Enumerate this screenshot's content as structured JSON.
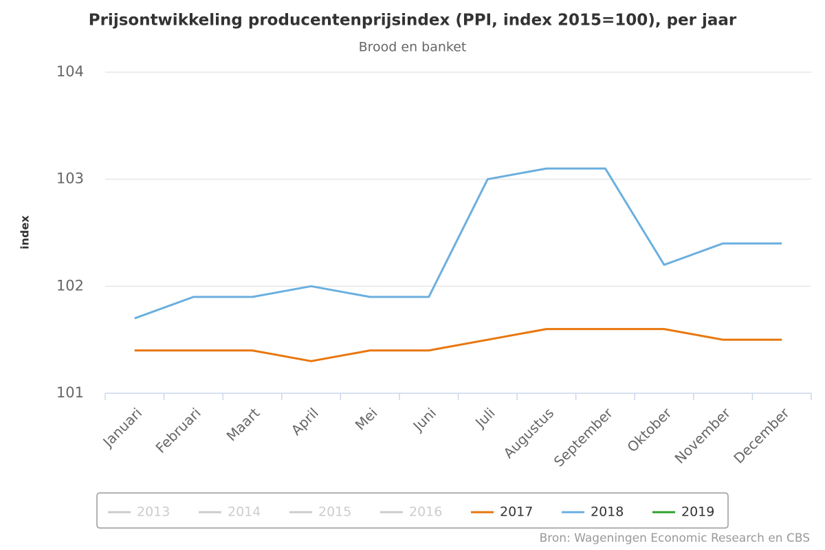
{
  "chart_data": {
    "type": "line",
    "title": "Prijsontwikkeling producentenprijsindex (PPI, index 2015=100), per jaar",
    "subtitle": "Brood en banket",
    "y_label": "index",
    "source": "Bron: Wageningen Economic Research en CBS",
    "categories": [
      "Januari",
      "Februari",
      "Maart",
      "April",
      "Mei",
      "Juni",
      "Juli",
      "Augustus",
      "September",
      "Oktober",
      "November",
      "December"
    ],
    "series": [
      {
        "name": "2013",
        "color": "#cccccc",
        "visible": false,
        "values": [
          null,
          null,
          null,
          null,
          null,
          null,
          null,
          null,
          null,
          null,
          null,
          null
        ]
      },
      {
        "name": "2014",
        "color": "#cccccc",
        "visible": false,
        "values": [
          null,
          null,
          null,
          null,
          null,
          null,
          null,
          null,
          null,
          null,
          null,
          null
        ]
      },
      {
        "name": "2015",
        "color": "#cccccc",
        "visible": false,
        "values": [
          null,
          null,
          null,
          null,
          null,
          null,
          null,
          null,
          null,
          null,
          null,
          null
        ]
      },
      {
        "name": "2016",
        "color": "#cccccc",
        "visible": false,
        "values": [
          null,
          null,
          null,
          null,
          null,
          null,
          null,
          null,
          null,
          null,
          null,
          null
        ]
      },
      {
        "name": "2017",
        "color": "#e8760b",
        "visible": true,
        "values": [
          101.4,
          101.4,
          101.4,
          101.3,
          101.4,
          101.4,
          101.5,
          101.6,
          101.6,
          101.6,
          101.5,
          101.5
        ]
      },
      {
        "name": "2018",
        "color": "#6aafdf",
        "visible": true,
        "values": [
          101.7,
          101.9,
          101.9,
          102.0,
          101.9,
          101.9,
          103.0,
          103.1,
          103.1,
          102.2,
          102.4,
          102.4
        ]
      },
      {
        "name": "2019",
        "color": "#2ca02c",
        "visible": true,
        "values": [
          null,
          null,
          null,
          null,
          null,
          null,
          null,
          null,
          null,
          null,
          null,
          null
        ]
      }
    ],
    "ylim": [
      101,
      104
    ],
    "yticks": [
      101,
      102,
      103,
      104
    ],
    "grid": true,
    "legend": "bottom"
  }
}
